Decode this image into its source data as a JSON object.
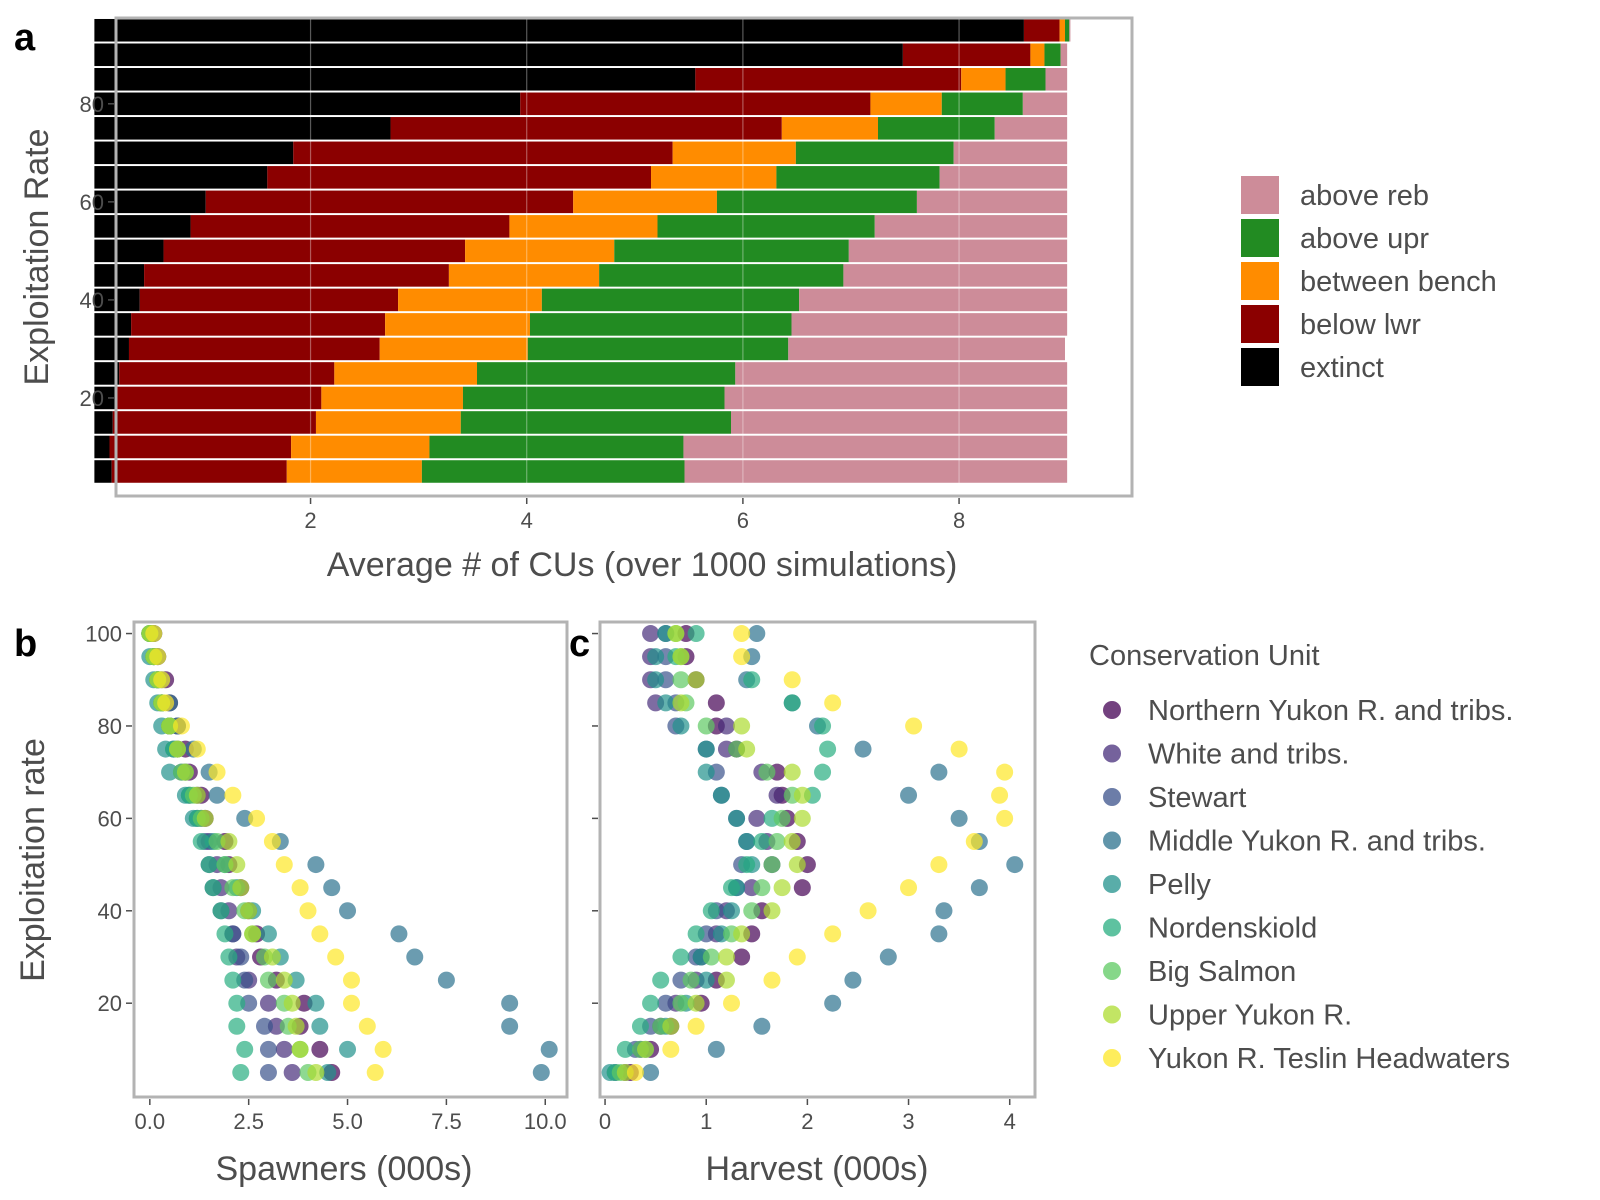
{
  "chart_data": [
    {
      "panel": "a",
      "type": "bar",
      "orientation": "horizontal",
      "stacked": true,
      "xlabel": "Average # of CUs (over 1000 simulations)",
      "ylabel": "Exploitation Rate",
      "xticks": [
        2,
        4,
        6,
        8
      ],
      "yticks": [
        20,
        40,
        60,
        80
      ],
      "xlim": [
        0.2,
        9.6
      ],
      "ylim": [
        0,
        97.5
      ],
      "grid": true,
      "legend_position": "right",
      "categories": [
        5,
        10,
        15,
        20,
        25,
        30,
        35,
        40,
        45,
        50,
        55,
        60,
        65,
        70,
        75,
        80,
        85,
        90,
        95
      ],
      "series": [
        {
          "name": "extinct",
          "color": "#000000",
          "values": [
            0.16,
            0.14,
            0.17,
            0.2,
            0.23,
            0.32,
            0.34,
            0.42,
            0.46,
            0.64,
            0.89,
            1.03,
            1.6,
            1.84,
            2.74,
            3.94,
            5.56,
            7.48,
            8.6
          ]
        },
        {
          "name": "below lwr",
          "color": "#8b0000",
          "values": [
            1.62,
            1.68,
            1.88,
            1.9,
            1.99,
            2.32,
            2.35,
            2.39,
            2.82,
            2.79,
            2.95,
            3.4,
            3.55,
            3.51,
            3.62,
            3.24,
            2.46,
            1.18,
            0.33
          ]
        },
        {
          "name": "between bench",
          "color": "#ff8c00",
          "values": [
            1.25,
            1.28,
            1.34,
            1.31,
            1.32,
            1.37,
            1.34,
            1.33,
            1.39,
            1.38,
            1.37,
            1.33,
            1.16,
            1.14,
            0.89,
            0.66,
            0.41,
            0.13,
            0.05
          ]
        },
        {
          "name": "above upr",
          "color": "#228b22",
          "values": [
            2.43,
            2.35,
            2.5,
            2.42,
            2.39,
            2.41,
            2.42,
            2.38,
            2.26,
            2.17,
            2.01,
            1.85,
            1.51,
            1.46,
            1.08,
            0.75,
            0.37,
            0.15,
            0.04
          ]
        },
        {
          "name": "above reb",
          "color": "#cd8c99",
          "values": [
            3.54,
            3.55,
            3.11,
            3.17,
            3.07,
            2.56,
            2.55,
            2.48,
            2.07,
            2.02,
            1.78,
            1.39,
            1.18,
            1.05,
            0.67,
            0.41,
            0.2,
            0.06,
            0.01
          ]
        }
      ]
    },
    {
      "panel": "b",
      "type": "scatter",
      "xlabel": "Spawners (000s)",
      "ylabel": "Exploitation rate",
      "xticks": [
        "0.0",
        "2.5",
        "5.0",
        "7.5",
        "10.0"
      ],
      "xlim": [
        -0.4,
        10.55
      ],
      "ylim": [
        -0.3,
        102.5
      ],
      "yticks": [
        20,
        40,
        60,
        80,
        100
      ],
      "grid": false,
      "y": [
        5,
        10,
        15,
        20,
        25,
        30,
        35,
        40,
        45,
        50,
        55,
        60,
        65,
        70,
        75,
        80,
        85,
        90,
        95,
        100
      ],
      "series": [
        {
          "name": "Northern Yukon R. and tribs.",
          "color": "#440154",
          "values": [
            4.6,
            4.3,
            3.8,
            3.9,
            3.2,
            2.8,
            2.7,
            2.5,
            2.3,
            2.0,
            1.9,
            1.4,
            1.3,
            1.0,
            0.9,
            0.7,
            0.5,
            0.4,
            0.2,
            0.1
          ]
        },
        {
          "name": "White and tribs.",
          "color": "#472d7b",
          "values": [
            3.6,
            3.4,
            3.2,
            3.0,
            2.5,
            2.2,
            2.1,
            2.0,
            1.8,
            1.7,
            1.5,
            1.3,
            1.2,
            0.9,
            0.7,
            0.5,
            0.3,
            0.2,
            0.1,
            0.0
          ]
        },
        {
          "name": "Stewart",
          "color": "#3b528b",
          "values": [
            3.0,
            3.0,
            2.9,
            2.5,
            2.4,
            2.3,
            2.1,
            1.8,
            1.6,
            1.5,
            1.4,
            1.2,
            1.0,
            0.8,
            0.6,
            0.5,
            0.3,
            0.2,
            0.1,
            0.0
          ]
        },
        {
          "name": "Middle Yukon R. and tribs.",
          "color": "#2c728e",
          "values": [
            9.9,
            10.1,
            9.1,
            9.1,
            7.5,
            6.7,
            6.3,
            5.0,
            4.6,
            4.2,
            3.3,
            2.4,
            1.7,
            1.5,
            1.1,
            0.7,
            0.5,
            0.3,
            0.2,
            0.1
          ]
        },
        {
          "name": "Pelly",
          "color": "#21918c",
          "values": [
            4.5,
            5.0,
            4.3,
            4.2,
            3.7,
            3.3,
            3.0,
            2.6,
            2.2,
            1.9,
            1.6,
            1.1,
            0.9,
            0.5,
            0.4,
            0.3,
            0.2,
            0.1,
            0.0,
            0.0
          ]
        },
        {
          "name": "Nordenskiold",
          "color": "#28ae80",
          "values": [
            2.3,
            2.4,
            2.2,
            2.2,
            2.1,
            2.0,
            1.9,
            1.8,
            1.6,
            1.5,
            1.3,
            1.2,
            1.0,
            0.9,
            0.6,
            0.5,
            0.3,
            0.2,
            0.1,
            0.0
          ]
        },
        {
          "name": "Big Salmon",
          "color": "#5ec962",
          "values": [
            4.0,
            3.8,
            3.5,
            3.4,
            3.0,
            2.9,
            2.6,
            2.4,
            2.1,
            1.9,
            1.7,
            1.3,
            1.1,
            0.8,
            0.7,
            0.5,
            0.3,
            0.2,
            0.1,
            0.0
          ]
        },
        {
          "name": "Upper Yukon R.",
          "color": "#addc30",
          "values": [
            4.2,
            3.8,
            3.7,
            3.6,
            3.4,
            3.1,
            2.6,
            2.5,
            2.3,
            2.2,
            2.0,
            1.4,
            1.2,
            0.9,
            0.7,
            0.5,
            0.3,
            0.2,
            0.1,
            0.0
          ]
        },
        {
          "name": "Yukon R. Teslin Headwaters",
          "color": "#fde725",
          "values": [
            5.7,
            5.9,
            5.5,
            5.1,
            5.1,
            4.7,
            4.3,
            4.0,
            3.8,
            3.4,
            3.1,
            2.7,
            2.1,
            1.7,
            1.2,
            0.8,
            0.4,
            0.3,
            0.2,
            0.1
          ]
        }
      ]
    },
    {
      "panel": "c",
      "type": "scatter",
      "xlabel": "Harvest (000s)",
      "ylabel": "",
      "xticks": [
        "0",
        "1",
        "2",
        "3",
        "4"
      ],
      "xlim": [
        -0.05,
        4.25
      ],
      "ylim": [
        -0.3,
        102.5
      ],
      "grid": false,
      "y": [
        5,
        10,
        15,
        20,
        25,
        30,
        35,
        40,
        45,
        50,
        55,
        60,
        65,
        70,
        75,
        80,
        85,
        90,
        95,
        100
      ],
      "series": [
        {
          "name": "Northern Yukon R. and tribs.",
          "color": "#440154",
          "values": [
            0.25,
            0.45,
            0.65,
            0.95,
            1.1,
            1.35,
            1.45,
            1.55,
            1.95,
            2.0,
            1.9,
            1.8,
            1.75,
            1.7,
            1.3,
            1.1,
            1.1,
            0.9,
            0.8,
            0.8
          ]
        },
        {
          "name": "White and tribs.",
          "color": "#472d7b",
          "values": [
            0.2,
            0.35,
            0.55,
            0.7,
            0.9,
            0.95,
            1.1,
            1.2,
            1.45,
            1.65,
            1.6,
            1.5,
            1.7,
            1.55,
            1.2,
            1.2,
            0.5,
            0.45,
            0.45,
            0.45
          ]
        },
        {
          "name": "Stewart",
          "color": "#3b528b",
          "values": [
            0.1,
            0.3,
            0.45,
            0.6,
            0.75,
            0.9,
            1.0,
            1.1,
            1.3,
            1.35,
            1.4,
            1.3,
            1.15,
            1.1,
            1.0,
            0.7,
            0.7,
            0.6,
            0.6,
            0.6
          ]
        },
        {
          "name": "Middle Yukon R. and tribs.",
          "color": "#2c728e",
          "values": [
            0.45,
            1.1,
            1.55,
            2.25,
            2.45,
            2.8,
            3.3,
            3.35,
            3.7,
            4.05,
            3.7,
            3.5,
            3.0,
            3.3,
            2.55,
            2.1,
            1.85,
            1.4,
            1.45,
            1.5
          ]
        },
        {
          "name": "Pelly",
          "color": "#21918c",
          "values": [
            0.05,
            0.4,
            0.6,
            0.8,
            1.0,
            0.95,
            1.15,
            1.25,
            1.3,
            1.45,
            1.4,
            1.3,
            1.15,
            1.0,
            1.0,
            0.75,
            0.6,
            0.5,
            0.5,
            0.6
          ]
        },
        {
          "name": "Nordenskiold",
          "color": "#28ae80",
          "values": [
            0.1,
            0.2,
            0.35,
            0.45,
            0.55,
            0.75,
            0.9,
            1.05,
            1.25,
            1.4,
            1.55,
            1.65,
            2.05,
            2.15,
            2.2,
            2.15,
            1.85,
            1.45,
            0.7,
            0.9
          ]
        },
        {
          "name": "Big Salmon",
          "color": "#5ec962",
          "values": [
            0.15,
            0.35,
            0.55,
            0.75,
            0.85,
            1.05,
            1.25,
            1.45,
            1.55,
            1.65,
            1.7,
            1.75,
            1.85,
            1.6,
            1.3,
            1.0,
            0.8,
            0.75,
            0.75,
            0.7
          ]
        },
        {
          "name": "Upper Yukon R.",
          "color": "#addc30",
          "values": [
            0.2,
            0.4,
            0.65,
            0.9,
            1.2,
            1.2,
            1.35,
            1.65,
            1.75,
            1.9,
            1.85,
            1.95,
            1.95,
            1.85,
            1.4,
            1.35,
            0.75,
            0.9,
            0.75,
            0.7
          ]
        },
        {
          "name": "Yukon R. Teslin Headwaters",
          "color": "#fde725",
          "values": [
            0.3,
            0.65,
            0.9,
            1.25,
            1.65,
            1.9,
            2.25,
            2.6,
            3.0,
            3.3,
            3.65,
            3.95,
            3.9,
            3.95,
            3.5,
            3.05,
            2.25,
            1.85,
            1.35,
            1.35
          ]
        }
      ]
    }
  ],
  "legend_top": {
    "items": [
      "above reb",
      "above upr",
      "between bench",
      "below lwr",
      "extinct"
    ],
    "colors": [
      "#cd8c99",
      "#228b22",
      "#ff8c00",
      "#8b0000",
      "#000000"
    ]
  },
  "legend_bottom": {
    "title": "Conservation Unit",
    "items": [
      "Northern Yukon R. and tribs.",
      "White and tribs.",
      "Stewart",
      "Middle Yukon R. and tribs.",
      "Pelly",
      "Nordenskiold",
      "Big Salmon",
      "Upper Yukon R.",
      "Yukon R. Teslin Headwaters"
    ],
    "colors": [
      "#440154",
      "#472d7b",
      "#3b528b",
      "#2c728e",
      "#21918c",
      "#28ae80",
      "#5ec962",
      "#addc30",
      "#fde725"
    ]
  },
  "panel_letters": [
    "a",
    "b",
    "c"
  ],
  "colors": {
    "panel_border": "#b3b3b3",
    "grid": "#ebebeb",
    "text": "#4d4d4d",
    "tick": "#4d4d4d"
  }
}
